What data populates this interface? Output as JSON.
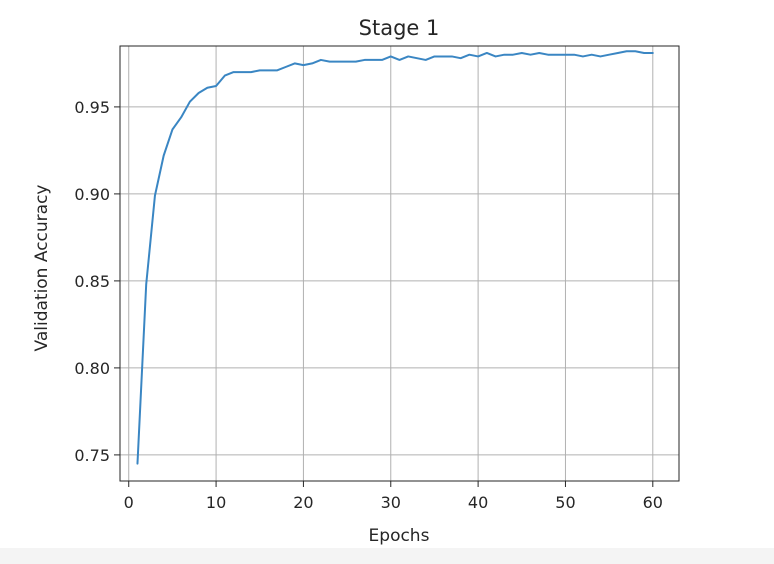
{
  "chart_data": {
    "type": "line",
    "title": "Stage 1",
    "xlabel": "Epochs",
    "ylabel": "Validation Accuracy",
    "xlim": [
      -1,
      63
    ],
    "ylim": [
      0.735,
      0.985
    ],
    "xticks": [
      0,
      10,
      20,
      30,
      40,
      50,
      60
    ],
    "yticks": [
      0.75,
      0.8,
      0.85,
      0.9,
      0.95
    ],
    "xtick_labels": [
      "0",
      "10",
      "20",
      "30",
      "40",
      "50",
      "60"
    ],
    "ytick_labels": [
      "0.75",
      "0.80",
      "0.85",
      "0.90",
      "0.95"
    ],
    "grid": true,
    "series": [
      {
        "color": "#3a86c3",
        "x": [
          1,
          2,
          3,
          4,
          5,
          6,
          7,
          8,
          9,
          10,
          11,
          12,
          13,
          14,
          15,
          16,
          17,
          18,
          19,
          20,
          21,
          22,
          23,
          24,
          25,
          26,
          27,
          28,
          29,
          30,
          31,
          32,
          33,
          34,
          35,
          36,
          37,
          38,
          39,
          40,
          41,
          42,
          43,
          44,
          45,
          46,
          47,
          48,
          49,
          50,
          51,
          52,
          53,
          54,
          55,
          56,
          57,
          58,
          59,
          60
        ],
        "y": [
          0.745,
          0.848,
          0.899,
          0.922,
          0.937,
          0.944,
          0.953,
          0.958,
          0.961,
          0.962,
          0.968,
          0.97,
          0.97,
          0.97,
          0.971,
          0.971,
          0.971,
          0.973,
          0.975,
          0.974,
          0.975,
          0.977,
          0.976,
          0.976,
          0.976,
          0.976,
          0.977,
          0.977,
          0.977,
          0.979,
          0.977,
          0.979,
          0.978,
          0.977,
          0.979,
          0.979,
          0.979,
          0.978,
          0.98,
          0.979,
          0.981,
          0.979,
          0.98,
          0.98,
          0.981,
          0.98,
          0.981,
          0.98,
          0.98,
          0.98,
          0.98,
          0.979,
          0.98,
          0.979,
          0.98,
          0.981,
          0.982,
          0.982,
          0.981,
          0.981
        ]
      }
    ]
  }
}
